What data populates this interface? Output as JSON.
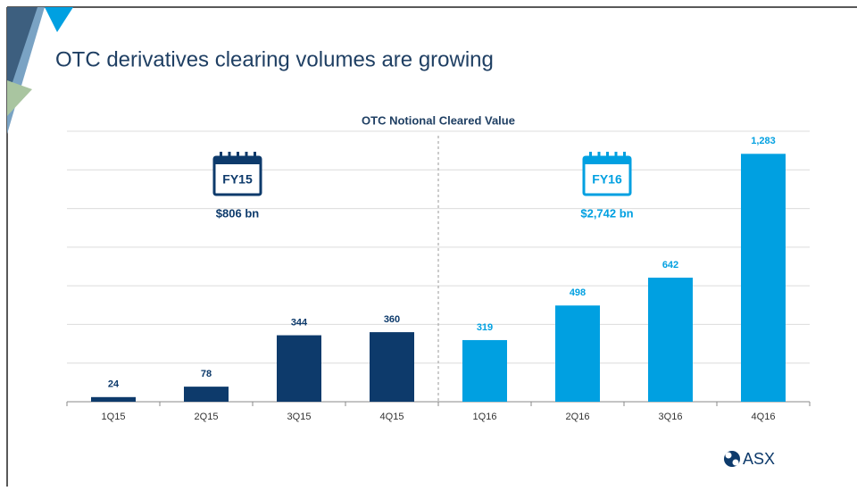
{
  "slide_title": "OTC derivatives clearing volumes are growing",
  "logo": "ASX",
  "chart_data": {
    "type": "bar",
    "title": "OTC Notional Cleared Value",
    "categories": [
      "1Q15",
      "2Q15",
      "3Q15",
      "4Q15",
      "1Q16",
      "2Q16",
      "3Q16",
      "4Q16"
    ],
    "values": [
      24,
      78,
      344,
      360,
      319,
      498,
      642,
      1283
    ],
    "value_labels": [
      "24",
      "78",
      "344",
      "360",
      "319",
      "498",
      "642",
      "1,283"
    ],
    "colors": [
      "#0d3a6b",
      "#0d3a6b",
      "#0d3a6b",
      "#0d3a6b",
      "#00a0e1",
      "#00a0e1",
      "#00a0e1",
      "#00a0e1"
    ],
    "ylim": [
      0,
      1400
    ],
    "yticks": [
      0,
      200,
      400,
      600,
      800,
      1000,
      1200,
      1400
    ],
    "grid": true,
    "annotations": [
      {
        "text": "FY15",
        "subtext": "$806 bn",
        "color": "#0d3a6b"
      },
      {
        "text": "FY16",
        "subtext": "$2,742 bn",
        "color": "#00a0e1"
      }
    ]
  }
}
